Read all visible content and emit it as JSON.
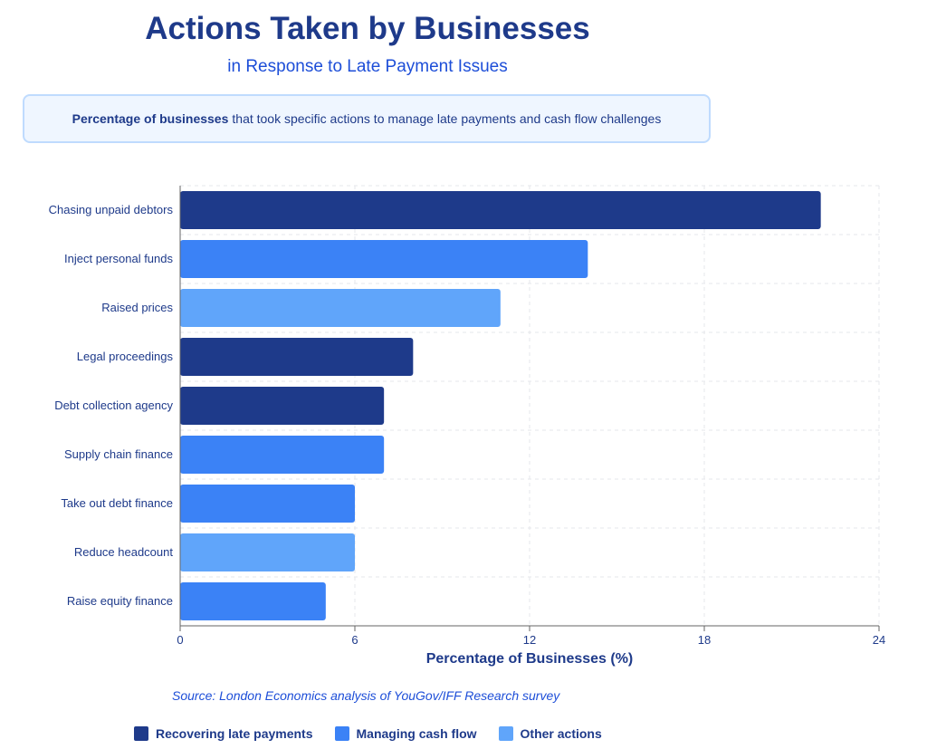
{
  "title": "Actions Taken by Businesses",
  "subtitle": "in Response to Late Payment Issues",
  "description": {
    "bold": "Percentage of businesses",
    "rest": "that took specific actions to manage late payments and cash flow challenges"
  },
  "source": "Source: London Economics analysis of YouGov/IFF Research survey",
  "colors": {
    "recovering": "#1e3a8a",
    "cashflow": "#3b82f6",
    "other": "#60a5fa"
  },
  "chart_data": {
    "type": "bar",
    "orientation": "horizontal",
    "categories": [
      "Chasing unpaid debtors",
      "Inject personal funds",
      "Raised prices",
      "Legal proceedings",
      "Debt collection agency",
      "Supply chain finance",
      "Take out debt finance",
      "Reduce headcount",
      "Raise equity finance"
    ],
    "values": [
      22,
      14,
      11,
      8,
      7,
      7,
      6,
      6,
      5
    ],
    "groups": [
      "recovering",
      "cashflow",
      "other",
      "recovering",
      "recovering",
      "cashflow",
      "cashflow",
      "other",
      "cashflow"
    ],
    "xlabel": "Percentage of Businesses (%)",
    "xlim": [
      0,
      24
    ],
    "xticks": [
      0,
      6,
      12,
      18,
      24
    ],
    "grid": true,
    "legend": [
      {
        "key": "recovering",
        "label": "Recovering late payments"
      },
      {
        "key": "cashflow",
        "label": "Managing cash flow"
      },
      {
        "key": "other",
        "label": "Other actions"
      }
    ],
    "legend_position": "bottom"
  }
}
